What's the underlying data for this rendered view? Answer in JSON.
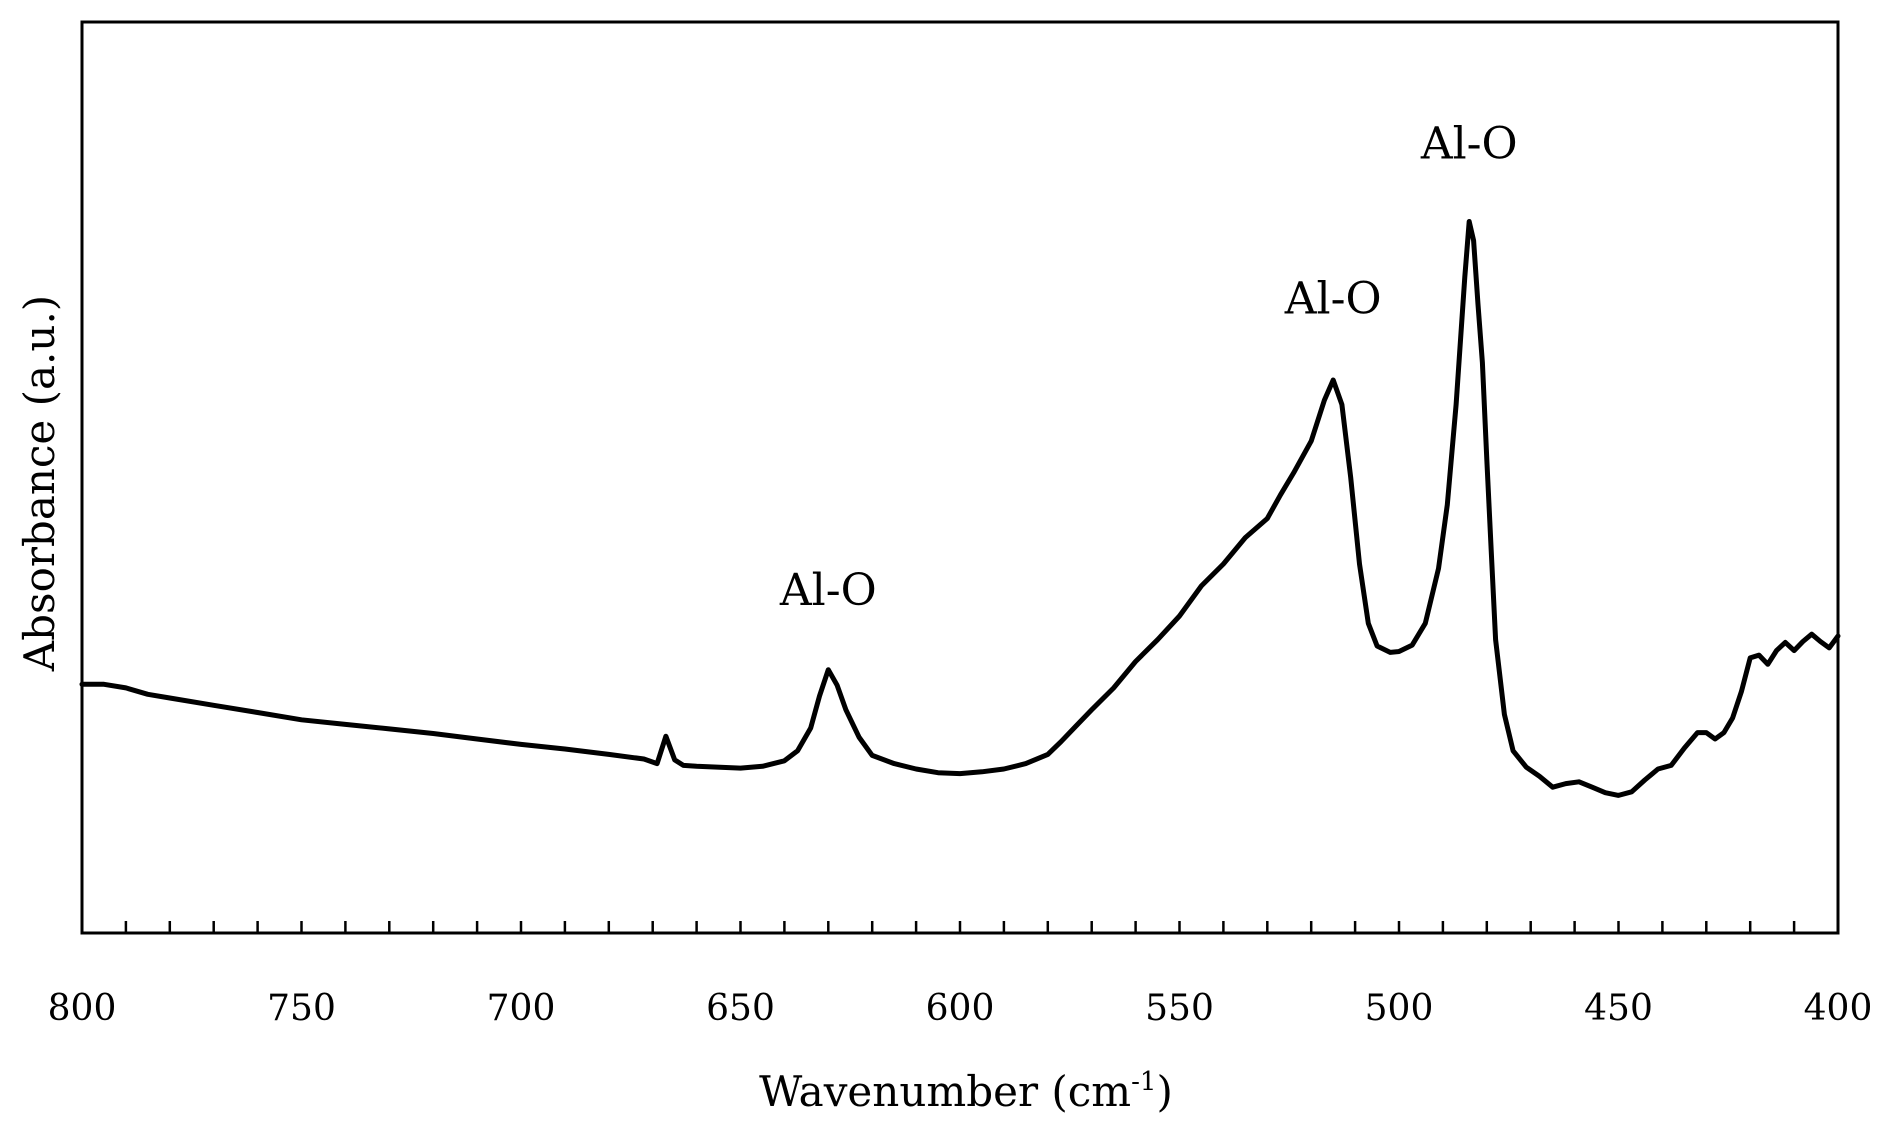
{
  "chart_data": {
    "type": "line",
    "title": "",
    "xlabel": "Wavenumber (cm",
    "xlabel_sup": "-1",
    "xlabel_close": ")",
    "ylabel": "Absorbance (a.u.)",
    "xlim": [
      800,
      400
    ],
    "ylim": [
      0,
      100
    ],
    "x_ticks": [
      800,
      750,
      700,
      650,
      600,
      550,
      500,
      450,
      400
    ],
    "x_minor_step": 10,
    "grid": false,
    "y_tick_labels": false,
    "series": [
      {
        "name": "spectrum",
        "color": "#000000",
        "x": [
          800,
          795,
          790,
          785,
          780,
          770,
          760,
          750,
          740,
          730,
          720,
          710,
          700,
          690,
          680,
          672,
          669,
          667,
          665,
          663,
          660,
          650,
          645,
          640,
          637,
          634,
          632,
          630,
          628,
          626,
          623,
          620,
          615,
          610,
          605,
          600,
          595,
          590,
          585,
          580,
          577,
          574,
          570,
          565,
          560,
          555,
          550,
          545,
          540,
          535,
          530,
          527,
          524,
          520,
          517,
          515,
          513,
          511,
          509,
          507,
          505,
          502,
          500,
          497,
          494,
          491,
          489,
          487,
          485,
          484,
          483,
          482,
          481,
          480,
          479,
          478,
          476,
          474,
          471,
          468,
          465,
          462,
          459,
          456,
          453,
          450,
          447,
          444,
          441,
          438,
          435,
          432,
          430,
          428,
          426,
          424,
          422,
          420,
          418,
          416,
          414,
          412,
          410,
          408,
          406,
          404,
          402,
          400
        ],
        "y": [
          27.3,
          27.3,
          26.9,
          26.2,
          25.8,
          25.0,
          24.2,
          23.4,
          22.9,
          22.4,
          21.9,
          21.3,
          20.7,
          20.2,
          19.6,
          19.1,
          18.6,
          21.6,
          19.0,
          18.4,
          18.3,
          18.1,
          18.3,
          18.9,
          20.0,
          22.5,
          26.0,
          28.9,
          27.2,
          24.5,
          21.5,
          19.5,
          18.6,
          18.0,
          17.6,
          17.5,
          17.7,
          18.0,
          18.6,
          19.6,
          21.0,
          22.5,
          24.5,
          26.9,
          29.8,
          32.2,
          34.8,
          38.1,
          40.5,
          43.4,
          45.5,
          48.1,
          50.5,
          54.0,
          58.5,
          60.7,
          58.0,
          50.0,
          40.5,
          34.0,
          31.5,
          30.8,
          30.9,
          31.6,
          34.0,
          40.0,
          47.0,
          58.0,
          72.0,
          78.1,
          76.0,
          69.0,
          62.6,
          52.0,
          42.0,
          32.2,
          24.0,
          20.0,
          18.2,
          17.2,
          16.0,
          16.4,
          16.6,
          16.0,
          15.4,
          15.1,
          15.5,
          16.8,
          18.0,
          18.4,
          20.3,
          22.0,
          22.0,
          21.3,
          22.0,
          23.6,
          26.5,
          30.2,
          30.5,
          29.5,
          31.0,
          31.9,
          31.0,
          32.0,
          32.8,
          32.0,
          31.3,
          32.6
        ]
      }
    ],
    "annotations": [
      {
        "text": "Al-O",
        "x": 630,
        "y": 36
      },
      {
        "text": "Al-O",
        "x": 515,
        "y": 68
      },
      {
        "text": "Al-O",
        "x": 484,
        "y": 85
      }
    ]
  }
}
